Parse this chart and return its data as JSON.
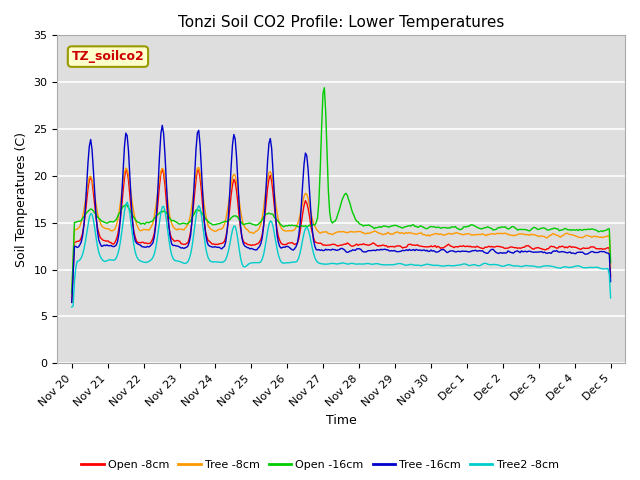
{
  "title": "Tonzi Soil CO2 Profile: Lower Temperatures",
  "xlabel": "Time",
  "ylabel": "Soil Temperatures (C)",
  "ylim": [
    0,
    35
  ],
  "yticks": [
    0,
    5,
    10,
    15,
    20,
    25,
    30,
    35
  ],
  "plot_bg_color": "#dedede",
  "grid_color": "white",
  "legend_label": "TZ_soilco2",
  "series_colors": [
    "#ff0000",
    "#ff9900",
    "#00cc00",
    "#0000cc",
    "#00cccc"
  ],
  "series_names": [
    "Open -8cm",
    "Tree -8cm",
    "Open -16cm",
    "Tree -16cm",
    "Tree2 -8cm"
  ],
  "title_fontsize": 11,
  "axis_fontsize": 9,
  "tick_fontsize": 8
}
